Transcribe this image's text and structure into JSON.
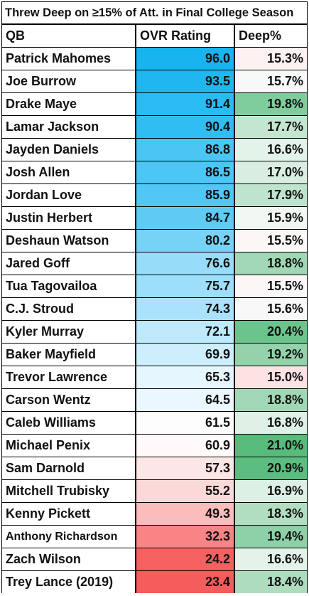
{
  "title": "Threw Deep on ≥15% of Att. in Final College Season",
  "headers": {
    "qb": "QB",
    "ovr": "OVR Rating",
    "deep": "Deep%"
  },
  "rows": [
    {
      "qb": "Patrick Mahomes",
      "ovr": "96.0",
      "deep": "15.3%",
      "ovr_color": "#18b4f0",
      "deep_color": "#fdf1f1"
    },
    {
      "qb": "Joe Burrow",
      "ovr": "93.5",
      "deep": "15.7%",
      "ovr_color": "#20b7f1",
      "deep_color": "#f6f9f7"
    },
    {
      "qb": "Drake Maye",
      "ovr": "91.4",
      "deep": "19.8%",
      "ovr_color": "#2abbf2",
      "deep_color": "#7fcc9c"
    },
    {
      "qb": "Lamar Jackson",
      "ovr": "90.4",
      "deep": "17.7%",
      "ovr_color": "#30bdf3",
      "deep_color": "#c4e6d1"
    },
    {
      "qb": "Jayden Daniels",
      "ovr": "86.8",
      "deep": "16.6%",
      "ovr_color": "#4ac5f4",
      "deep_color": "#e4f3ea"
    },
    {
      "qb": "Josh Allen",
      "ovr": "86.5",
      "deep": "17.0%",
      "ovr_color": "#4cc6f4",
      "deep_color": "#d9eee1"
    },
    {
      "qb": "Jordan Love",
      "ovr": "85.9",
      "deep": "17.9%",
      "ovr_color": "#51c7f5",
      "deep_color": "#bfe4cd"
    },
    {
      "qb": "Justin Herbert",
      "ovr": "84.7",
      "deep": "15.9%",
      "ovr_color": "#5ecbf5",
      "deep_color": "#f1f8f3"
    },
    {
      "qb": "Deshaun Watson",
      "ovr": "80.2",
      "deep": "15.5%",
      "ovr_color": "#76d3f7",
      "deep_color": "#fbf7f7"
    },
    {
      "qb": "Jared Goff",
      "ovr": "76.6",
      "deep": "18.8%",
      "ovr_color": "#97dcf9",
      "deep_color": "#a1d7b5"
    },
    {
      "qb": "Tua Tagovailoa",
      "ovr": "75.7",
      "deep": "15.5%",
      "ovr_color": "#9ddefa",
      "deep_color": "#fbf7f7"
    },
    {
      "qb": "C.J. Stroud",
      "ovr": "74.3",
      "deep": "15.6%",
      "ovr_color": "#a9e2fa",
      "deep_color": "#f9f8f8"
    },
    {
      "qb": "Kyler Murray",
      "ovr": "72.1",
      "deep": "20.4%",
      "ovr_color": "#bde9fb",
      "deep_color": "#6cc48d"
    },
    {
      "qb": "Baker Mayfield",
      "ovr": "69.9",
      "deep": "19.2%",
      "ovr_color": "#cdeefc",
      "deep_color": "#94d2ab"
    },
    {
      "qb": "Trevor Lawrence",
      "ovr": "65.3",
      "deep": "15.0%",
      "ovr_color": "#e6f6fe",
      "deep_color": "#fbe3e3"
    },
    {
      "qb": "Carson Wentz",
      "ovr": "64.5",
      "deep": "18.8%",
      "ovr_color": "#eaf7fe",
      "deep_color": "#a1d7b5"
    },
    {
      "qb": "Caleb Williams",
      "ovr": "61.5",
      "deep": "16.8%",
      "ovr_color": "#fdfdfd",
      "deep_color": "#dff1e6"
    },
    {
      "qb": "Michael Penix",
      "ovr": "60.9",
      "deep": "21.0%",
      "ovr_color": "#fffafa",
      "deep_color": "#57bb7c"
    },
    {
      "qb": "Sam Darnold",
      "ovr": "57.3",
      "deep": "20.9%",
      "ovr_color": "#fde6e6",
      "deep_color": "#5cbd80"
    },
    {
      "qb": "Mitchell Trubisky",
      "ovr": "55.2",
      "deep": "16.9%",
      "ovr_color": "#fcd9d9",
      "deep_color": "#dcf0e4"
    },
    {
      "qb": "Kenny Pickett",
      "ovr": "49.3",
      "deep": "18.3%",
      "ovr_color": "#fbbcbc",
      "deep_color": "#b1ddc1"
    },
    {
      "qb": "Anthony Richardson",
      "ovr": "32.3",
      "deep": "19.4%",
      "ovr_color": "#f78585",
      "deep_color": "#8ed0a7"
    },
    {
      "qb": "Zach Wilson",
      "ovr": "24.2",
      "deep": "16.6%",
      "ovr_color": "#f56060",
      "deep_color": "#e4f3ea"
    },
    {
      "qb": "Trey Lance (2019)",
      "ovr": "23.4",
      "deep": "18.4%",
      "ovr_color": "#f55c5c",
      "deep_color": "#aedcbf"
    }
  ]
}
